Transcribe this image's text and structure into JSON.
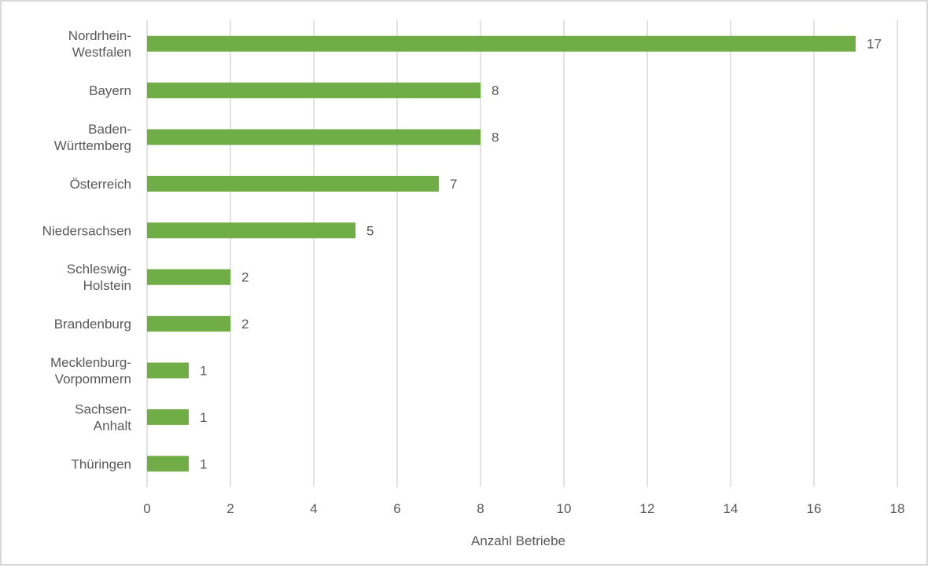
{
  "chart_data": {
    "type": "bar",
    "orientation": "horizontal",
    "categories": [
      [
        "Nordrhein-",
        "Westfalen"
      ],
      [
        "Bayern"
      ],
      [
        "Baden-",
        "Württemberg"
      ],
      [
        "Österreich"
      ],
      [
        "Niedersachsen"
      ],
      [
        "Schleswig-",
        "Holstein"
      ],
      [
        "Brandenburg"
      ],
      [
        "Mecklenburg-",
        "Vorpommern"
      ],
      [
        "Sachsen-",
        "Anhalt"
      ],
      [
        "Thüringen"
      ]
    ],
    "values": [
      17,
      8,
      8,
      7,
      5,
      2,
      2,
      1,
      1,
      1
    ],
    "data_labels": [
      "17",
      "8",
      "8",
      "7",
      "5",
      "2",
      "2",
      "1",
      "1",
      "1"
    ],
    "title": "",
    "xlabel": "Anzahl Betriebe",
    "ylabel": "",
    "xlim": [
      0,
      18
    ],
    "xticks": [
      "0",
      "2",
      "4",
      "6",
      "8",
      "10",
      "12",
      "14",
      "16",
      "18"
    ],
    "grid": "vertical",
    "legend": "none",
    "colors": {
      "bar": "#70ad47",
      "grid": "#d9d9d9",
      "text": "#595959"
    }
  }
}
